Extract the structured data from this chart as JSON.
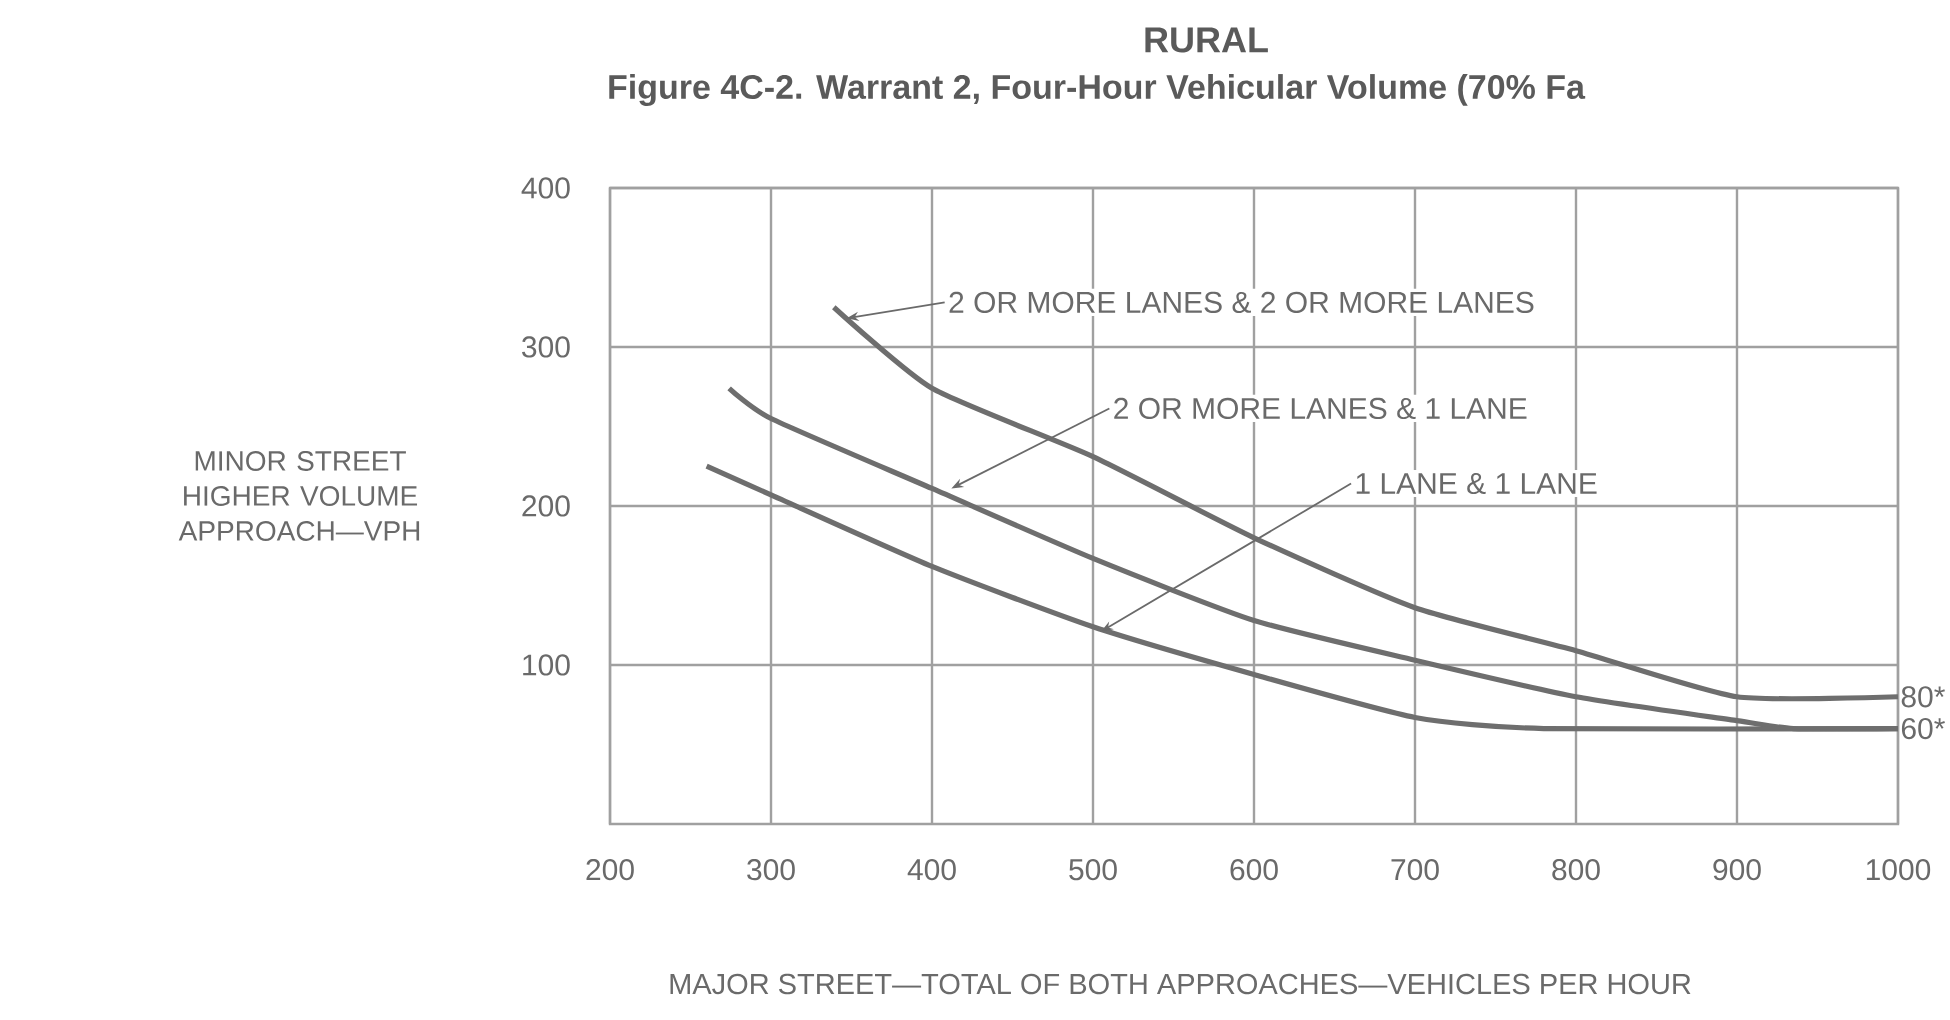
{
  "chart_data": {
    "type": "line",
    "title": "RURAL",
    "subtitle": "Figure 4C-2.  Warrant 2, Four-Hour Vehicular Volume (70% Fa",
    "xlabel": "MAJOR STREET—TOTAL OF BOTH APPROACHES—VEHICLES PER HOUR",
    "ylabel": "MINOR STREET HIGHER VOLUME APPROACH—VPH",
    "xlim": [
      200,
      1000
    ],
    "ylim": [
      0,
      400
    ],
    "xticks": [
      200,
      300,
      400,
      500,
      600,
      700,
      800,
      900,
      1000
    ],
    "yticks": [
      100,
      200,
      300,
      400
    ],
    "grid": true,
    "series": [
      {
        "color": "#6e6e6e",
        "x": [
          339,
          400,
          500,
          600,
          700,
          800,
          900,
          1000
        ],
        "values": [
          325,
          274,
          231,
          180,
          136,
          109,
          80,
          80
        ]
      },
      {
        "color": "#6e6e6e",
        "x": [
          274,
          300,
          400,
          500,
          600,
          700,
          800,
          900,
          935,
          1000
        ],
        "values": [
          274,
          255,
          211,
          167,
          128,
          103,
          80,
          65,
          60,
          60
        ]
      },
      {
        "color": "#6e6e6e",
        "x": [
          260,
          300,
          400,
          500,
          600,
          700,
          780,
          1000
        ],
        "values": [
          225,
          207,
          162,
          124,
          94,
          67,
          60,
          60
        ]
      }
    ],
    "annotations": [
      {
        "text": "2 OR MORE LANES & 2 OR MORE LANES",
        "x": 347,
        "y": 318
      },
      {
        "text": "2 OR MORE LANES & 1 LANE",
        "x": 412,
        "y": 211
      },
      {
        "text": "1 LANE & 1 LANE",
        "x": 505,
        "y": 121
      },
      {
        "text": "80*",
        "x": 1000,
        "y": 80
      },
      {
        "text": "60*",
        "x": 1000,
        "y": 60
      }
    ]
  }
}
